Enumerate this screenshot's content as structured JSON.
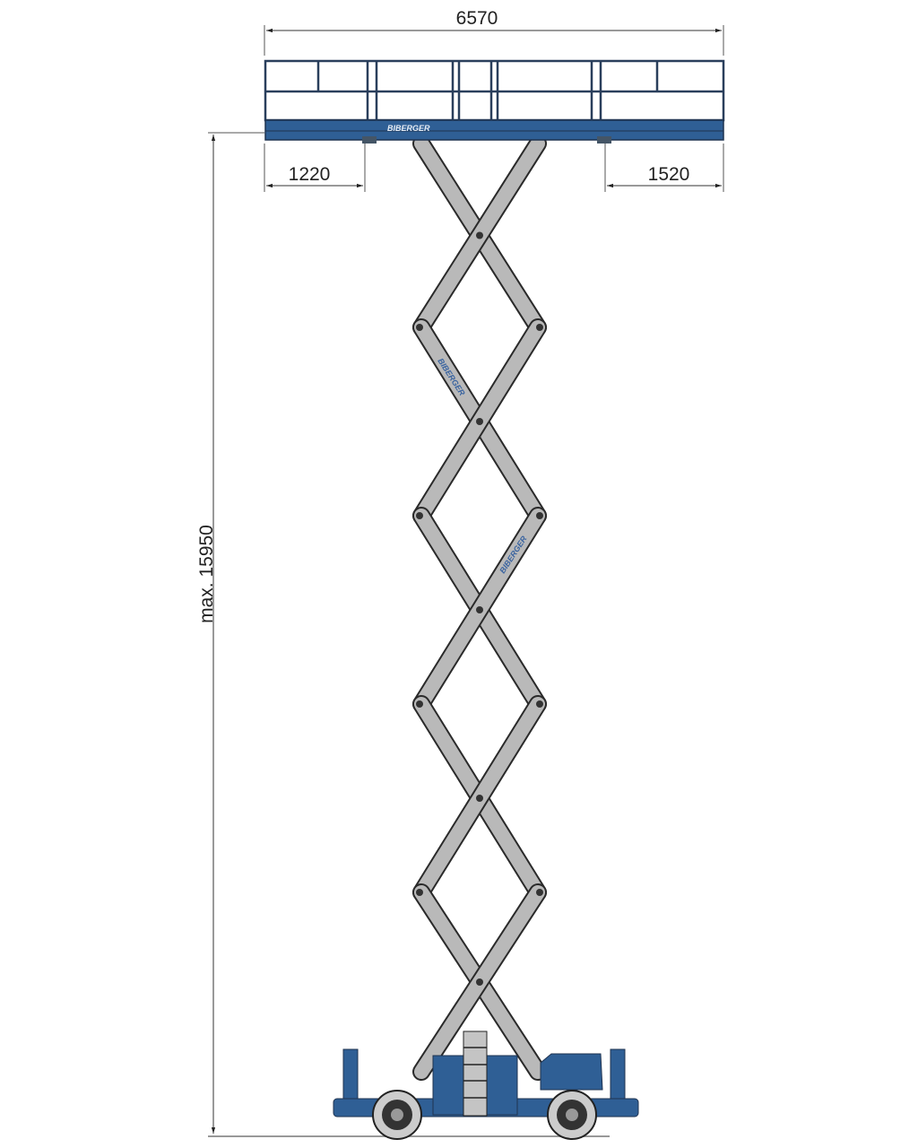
{
  "dimensions": {
    "overall_width": "6570",
    "left_extension": "1220",
    "right_extension": "1520",
    "max_height": "max. 15950"
  },
  "branding": {
    "platform_logo": "BIBERGER",
    "arm_logo_1": "BIBERGER",
    "arm_logo_2": "BIBERGER"
  },
  "colors": {
    "machine_blue": "#2f5f95",
    "arm_gray": "#b9b9b9",
    "outline": "#2a2a2a",
    "dimension_line": "#333333"
  }
}
